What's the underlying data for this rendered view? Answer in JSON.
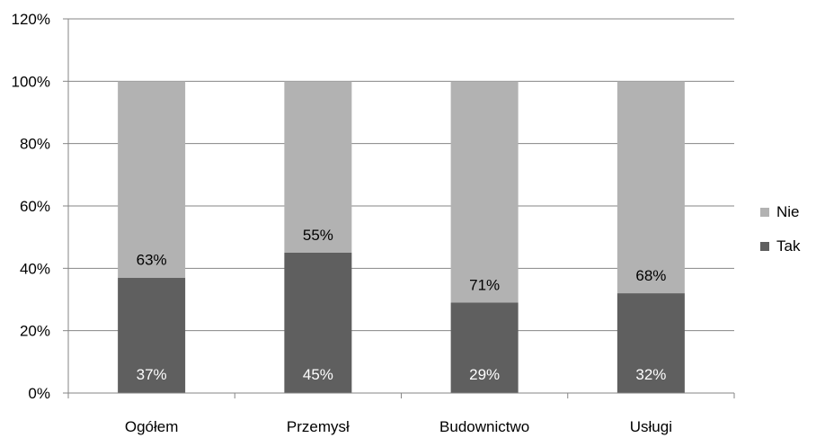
{
  "chart_data": {
    "type": "bar",
    "stacked": true,
    "categories": [
      "Ogółem",
      "Przemysł",
      "Budownictwo",
      "Usługi"
    ],
    "series": [
      {
        "name": "Tak",
        "values": [
          37,
          45,
          29,
          32
        ],
        "color": "#5f5f5f",
        "labels": [
          "37%",
          "45%",
          "29%",
          "32%"
        ],
        "label_color": "#ffffff"
      },
      {
        "name": "Nie",
        "values": [
          63,
          55,
          71,
          68
        ],
        "color": "#b2b2b2",
        "labels": [
          "63%",
          "55%",
          "71%",
          "68%"
        ],
        "label_color": "#000000"
      }
    ],
    "y_ticks": [
      "0%",
      "20%",
      "40%",
      "60%",
      "80%",
      "100%",
      "120%"
    ],
    "ylim": [
      0,
      120
    ],
    "grid": true,
    "legend_position": "right",
    "title": "",
    "xlabel": "",
    "ylabel": ""
  }
}
